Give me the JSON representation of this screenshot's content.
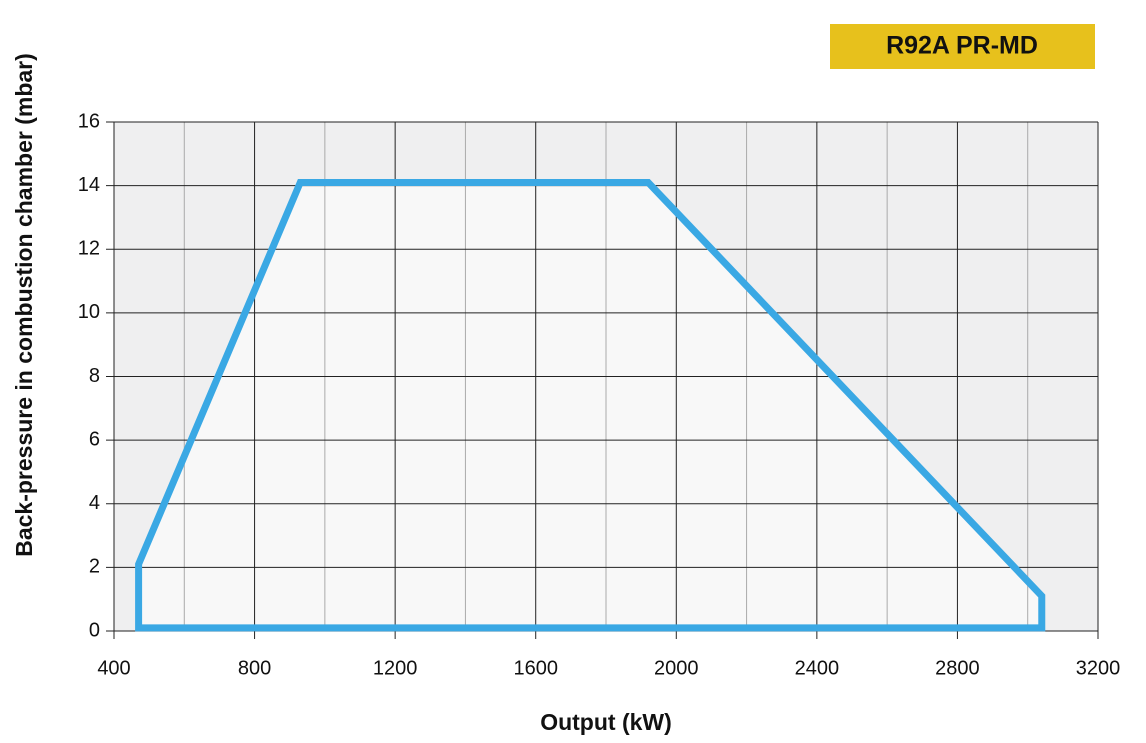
{
  "chart_data": {
    "type": "area",
    "title": "R92A PR-MD",
    "title_background": "#e7c11c",
    "x_label": "Output (kW)",
    "y_label": "Back-pressure in combustion chamber (mbar)",
    "x": [
      470,
      470,
      930,
      1920,
      3040,
      3040
    ],
    "series": [
      {
        "color": "#3aa8e4",
        "values": [
          0.1,
          2.1,
          14.1,
          14.1,
          1.1,
          0.1
        ]
      }
    ],
    "xlim": [
      400,
      3200
    ],
    "xticks": [
      400,
      800,
      1200,
      1600,
      2000,
      2400,
      2800,
      3200
    ],
    "x_minor_ticks": [
      600,
      1000,
      1400,
      1800,
      2200,
      2600,
      3000
    ],
    "ylim": [
      0,
      16
    ],
    "yticks": [
      0,
      2,
      4,
      6,
      8,
      10,
      12,
      14,
      16
    ],
    "grid": true
  }
}
